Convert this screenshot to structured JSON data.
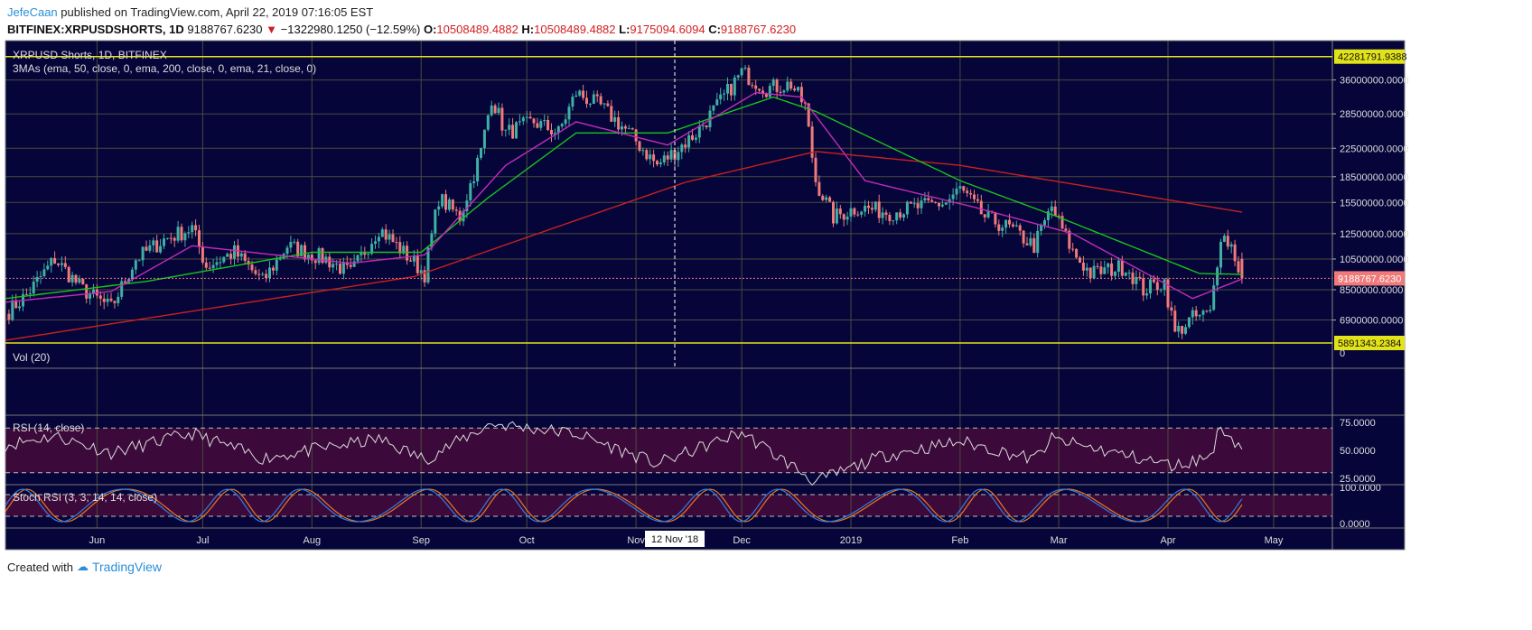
{
  "header": {
    "user": "JefeCaan",
    "published": "published on TradingView.com, April 22, 2019 07:16:05 EST",
    "symbol": "BITFINEX:XRPUSDSHORTS, 1D",
    "last": "9188767.6230",
    "change": "−1322980.1250 (−12.59%)",
    "o_label": "O:",
    "o": "10508489.4882",
    "h_label": "H:",
    "h": "10508489.4882",
    "l_label": "L:",
    "l": "9175094.6094",
    "c_label": "C:",
    "c": "9188767.6230"
  },
  "footer": {
    "created": "Created with",
    "brand": "TradingView"
  },
  "colors": {
    "background": "#05053a",
    "up": "#3fb0a3",
    "down": "#f07a7a",
    "ema50": "#19c21e",
    "ema200": "#c7211d",
    "ema21": "#c42bb7",
    "hline": "#e3e31a",
    "rsi_band": "#3b0a3a"
  },
  "chart_data": {
    "type": "candlestick",
    "title": "XRPUSD Shorts, 1D, BITFINEX",
    "indicator_label": "3MAs (ema, 50, close, 0, ema, 200, close, 0, ema, 21, close, 0)",
    "y_scale": "log",
    "ylim": [
      5300000,
      44000000
    ],
    "y_ticks": [
      "36000000.0000",
      "28500000.0000",
      "22500000.0000",
      "18500000.0000",
      "15500000.0000",
      "12500000.0000",
      "10500000.0000",
      "8500000.0000",
      "6900000.0000"
    ],
    "y_tick_values": [
      36000000,
      28500000,
      22500000,
      18500000,
      15500000,
      12500000,
      10500000,
      8500000,
      6900000
    ],
    "x_ticks": [
      "Jun",
      "Jul",
      "Aug",
      "Sep",
      "Oct",
      "Nov",
      "Dec",
      "2019",
      "Feb",
      "Mar",
      "Apr",
      "May"
    ],
    "x_tick_dates": [
      "2018-06-01",
      "2018-07-01",
      "2018-08-01",
      "2018-09-01",
      "2018-10-01",
      "2018-11-01",
      "2018-12-01",
      "2019-01-01",
      "2019-02-01",
      "2019-03-01",
      "2019-04-01",
      "2019-05-01"
    ],
    "xlim": [
      "2018-05-06",
      "2019-05-28"
    ],
    "crosshair_label": "12 Nov '18",
    "crosshair_date": "2018-11-12",
    "horizontal_lines": [
      {
        "value": 42281791.9388,
        "label": "42281791.9388"
      },
      {
        "value": 5891343.2384,
        "label": "5891343.2384"
      }
    ],
    "last_price": {
      "value": 9188767.623,
      "label": "9188767.6230"
    },
    "close_keypoints": [
      [
        "2018-05-06",
        7200000
      ],
      [
        "2018-05-12",
        8200000
      ],
      [
        "2018-05-20",
        10500000
      ],
      [
        "2018-05-28",
        8500000
      ],
      [
        "2018-06-05",
        7500000
      ],
      [
        "2018-06-12",
        10500000
      ],
      [
        "2018-06-20",
        12000000
      ],
      [
        "2018-06-28",
        13000000
      ],
      [
        "2018-07-02",
        10000000
      ],
      [
        "2018-07-10",
        11000000
      ],
      [
        "2018-07-18",
        9000000
      ],
      [
        "2018-07-25",
        11500000
      ],
      [
        "2018-08-05",
        10500000
      ],
      [
        "2018-08-12",
        9500000
      ],
      [
        "2018-08-20",
        13000000
      ],
      [
        "2018-08-27",
        11000000
      ],
      [
        "2018-09-02",
        9500000
      ],
      [
        "2018-09-06",
        16000000
      ],
      [
        "2018-09-12",
        14000000
      ],
      [
        "2018-09-18",
        22000000
      ],
      [
        "2018-09-21",
        32000000
      ],
      [
        "2018-09-25",
        25000000
      ],
      [
        "2018-10-03",
        27000000
      ],
      [
        "2018-10-10",
        25000000
      ],
      [
        "2018-10-15",
        33000000
      ],
      [
        "2018-10-22",
        30000000
      ],
      [
        "2018-10-30",
        25000000
      ],
      [
        "2018-11-07",
        20000000
      ],
      [
        "2018-11-12",
        22000000
      ],
      [
        "2018-11-18",
        25000000
      ],
      [
        "2018-11-24",
        30000000
      ],
      [
        "2018-12-01",
        38000000
      ],
      [
        "2018-12-08",
        34000000
      ],
      [
        "2018-12-15",
        35000000
      ],
      [
        "2018-12-19",
        30000000
      ],
      [
        "2018-12-22",
        18000000
      ],
      [
        "2018-12-27",
        14000000
      ],
      [
        "2019-01-03",
        15000000
      ],
      [
        "2019-01-12",
        14500000
      ],
      [
        "2019-01-20",
        15000000
      ],
      [
        "2019-01-28",
        15500000
      ],
      [
        "2019-02-01",
        17000000
      ],
      [
        "2019-02-08",
        14000000
      ],
      [
        "2019-02-15",
        13000000
      ],
      [
        "2019-02-22",
        11500000
      ],
      [
        "2019-02-27",
        15000000
      ],
      [
        "2019-03-05",
        11000000
      ],
      [
        "2019-03-10",
        9500000
      ],
      [
        "2019-03-20",
        10000000
      ],
      [
        "2019-03-25",
        8500000
      ],
      [
        "2019-03-31",
        9000000
      ],
      [
        "2019-04-03",
        6300000
      ],
      [
        "2019-04-08",
        7000000
      ],
      [
        "2019-04-13",
        7200000
      ],
      [
        "2019-04-16",
        12500000
      ],
      [
        "2019-04-19",
        11500000
      ],
      [
        "2019-04-22",
        9188767.623
      ]
    ],
    "ema50": [
      [
        "2018-05-06",
        8000000
      ],
      [
        "2018-06-15",
        9000000
      ],
      [
        "2018-08-01",
        11000000
      ],
      [
        "2018-09-01",
        11000000
      ],
      [
        "2018-09-20",
        16000000
      ],
      [
        "2018-10-15",
        25000000
      ],
      [
        "2018-11-10",
        25000000
      ],
      [
        "2018-12-10",
        32000000
      ],
      [
        "2018-12-22",
        29000000
      ],
      [
        "2019-02-01",
        18000000
      ],
      [
        "2019-03-01",
        14000000
      ],
      [
        "2019-04-10",
        9500000
      ],
      [
        "2019-04-22",
        9450000
      ]
    ],
    "ema200": [
      [
        "2018-05-06",
        6000000
      ],
      [
        "2018-08-30",
        9300000
      ],
      [
        "2018-11-15",
        17800000
      ],
      [
        "2018-12-22",
        22000000
      ],
      [
        "2019-02-01",
        20000000
      ],
      [
        "2019-04-22",
        14500000
      ]
    ],
    "ema21": [
      [
        "2018-05-06",
        7800000
      ],
      [
        "2018-06-05",
        8400000
      ],
      [
        "2018-06-28",
        11500000
      ],
      [
        "2018-08-12",
        10200000
      ],
      [
        "2018-09-02",
        10800000
      ],
      [
        "2018-09-25",
        20000000
      ],
      [
        "2018-10-15",
        27000000
      ],
      [
        "2018-11-10",
        23000000
      ],
      [
        "2018-12-05",
        33000000
      ],
      [
        "2018-12-18",
        32000000
      ],
      [
        "2019-01-05",
        18000000
      ],
      [
        "2019-02-05",
        15000000
      ],
      [
        "2019-03-05",
        12500000
      ],
      [
        "2019-04-08",
        8000000
      ],
      [
        "2019-04-22",
        9150000
      ]
    ],
    "volume": {
      "label": "Vol (20)",
      "ticks": [
        "0"
      ]
    },
    "rsi": {
      "label": "RSI (14, close)",
      "ticks": [
        "75.0000",
        "50.0000",
        "25.0000"
      ],
      "bands": [
        70,
        30
      ],
      "keypoints": [
        [
          "2018-05-06",
          55
        ],
        [
          "2018-05-20",
          63
        ],
        [
          "2018-06-05",
          48
        ],
        [
          "2018-06-28",
          65
        ],
        [
          "2018-07-18",
          43
        ],
        [
          "2018-08-20",
          60
        ],
        [
          "2018-09-02",
          42
        ],
        [
          "2018-09-21",
          74
        ],
        [
          "2018-10-15",
          65
        ],
        [
          "2018-11-07",
          38
        ],
        [
          "2018-12-01",
          66
        ],
        [
          "2018-12-22",
          22
        ],
        [
          "2019-01-10",
          45
        ],
        [
          "2019-02-01",
          58
        ],
        [
          "2019-02-22",
          42
        ],
        [
          "2019-02-27",
          60
        ],
        [
          "2019-04-03",
          36
        ],
        [
          "2019-04-13",
          45
        ],
        [
          "2019-04-16",
          72
        ],
        [
          "2019-04-22",
          51
        ]
      ]
    },
    "stoch_rsi": {
      "label": "Stoch RSI (3, 3, 14, 14, close)",
      "ticks": [
        "100.0000",
        "0.0000"
      ],
      "bands": [
        80,
        20
      ]
    }
  }
}
